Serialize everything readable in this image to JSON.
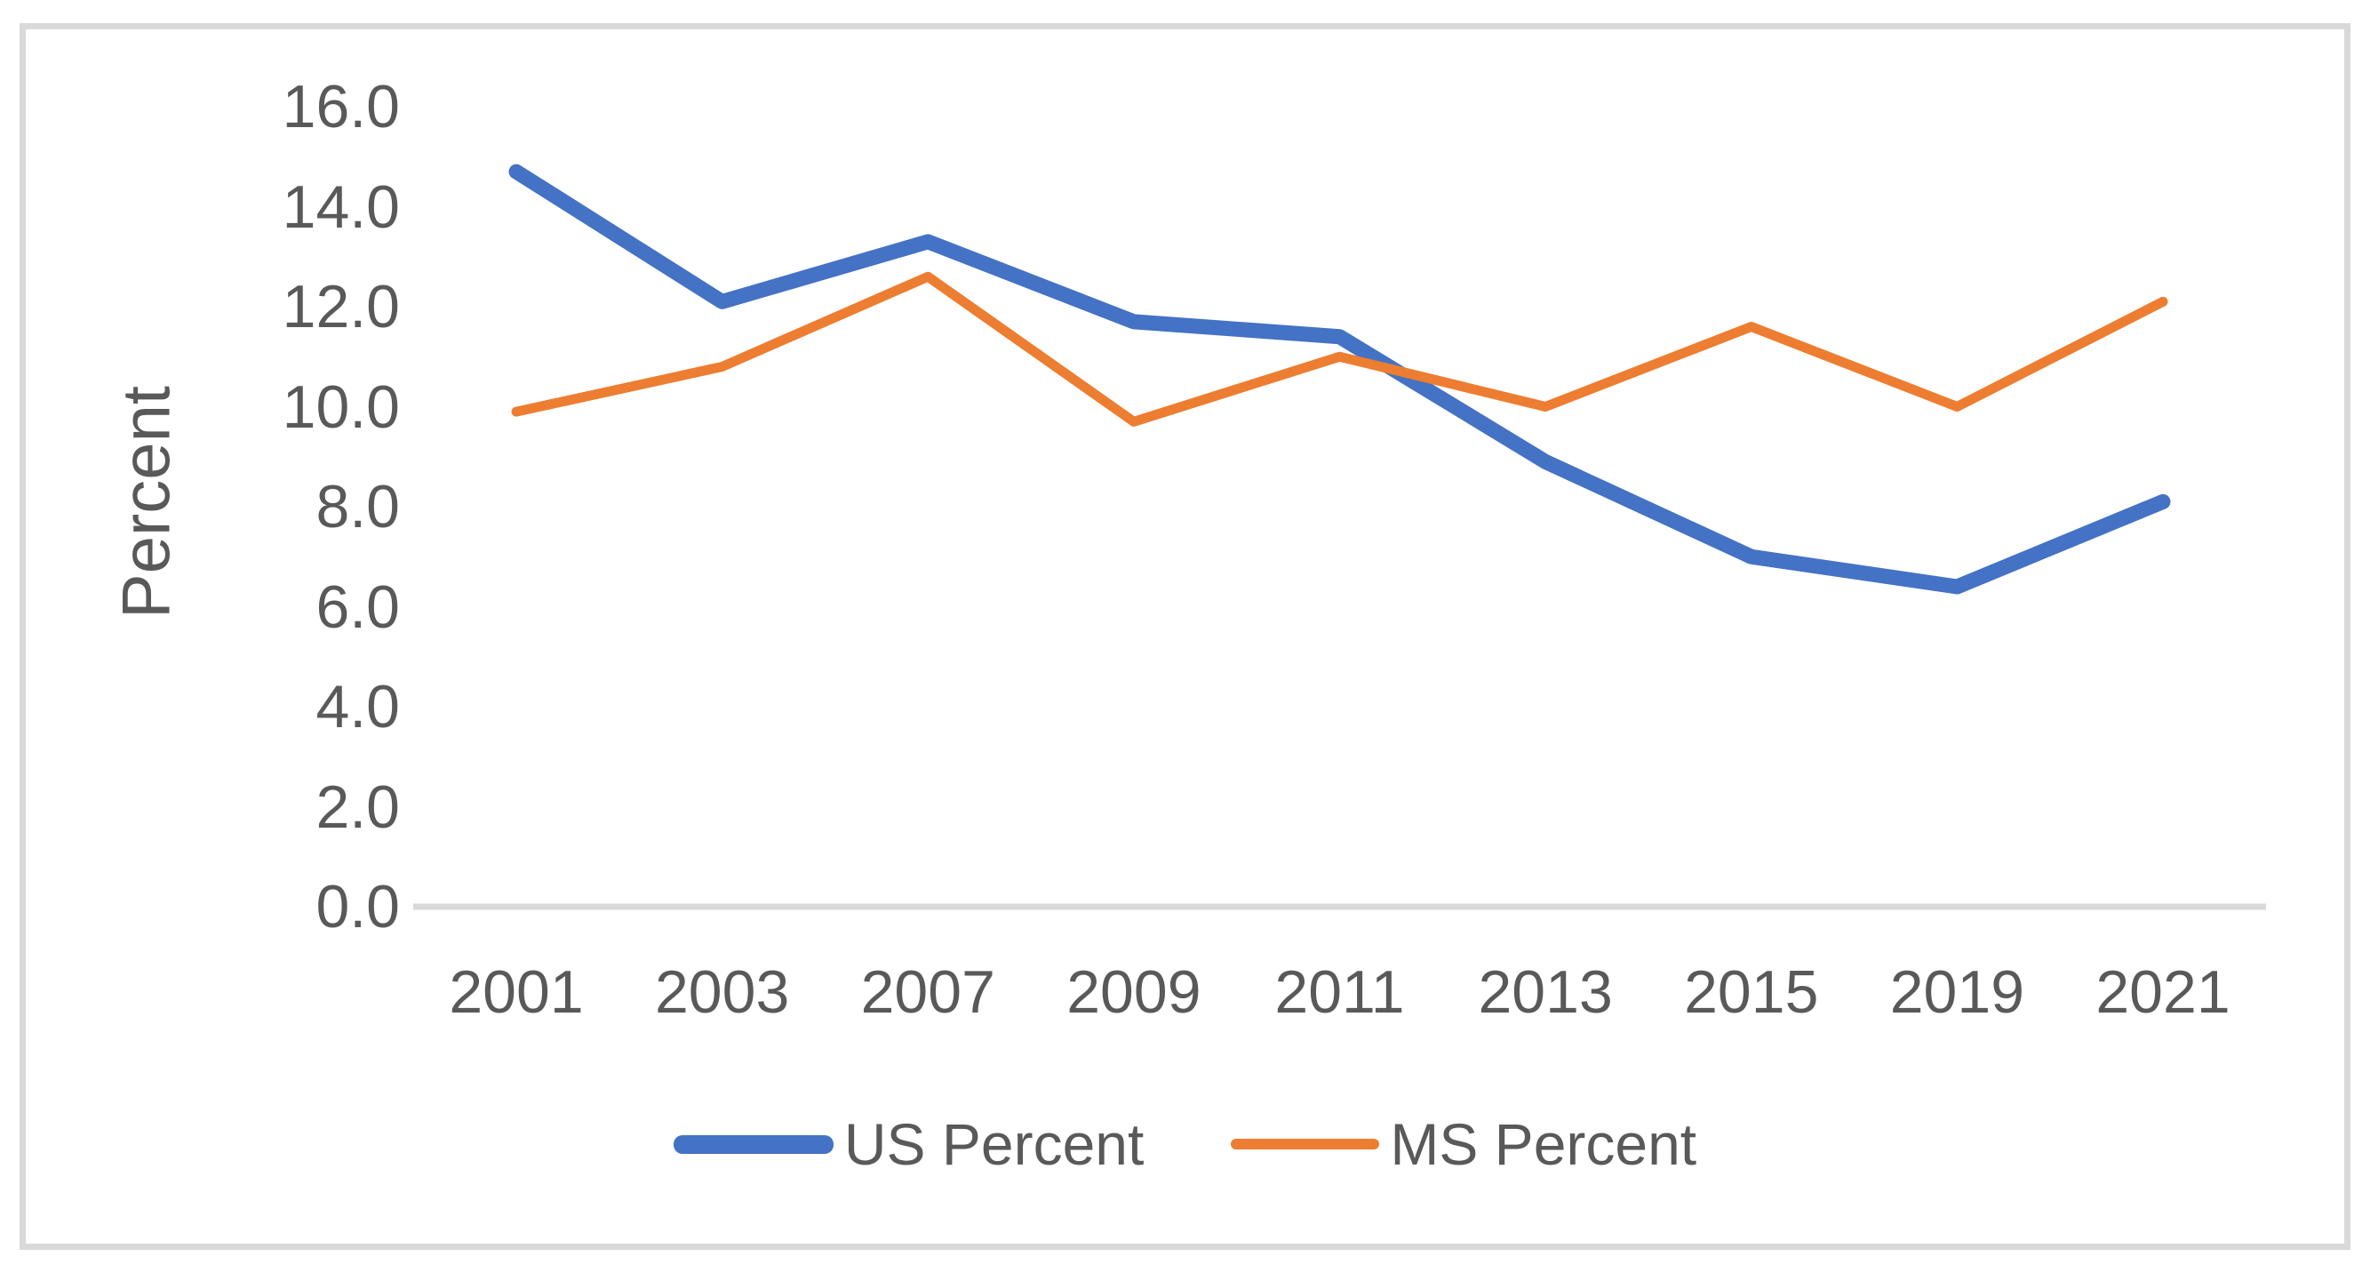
{
  "chart_data": {
    "type": "line",
    "categories": [
      "2001",
      "2003",
      "2007",
      "2009",
      "2011",
      "2013",
      "2015",
      "2019",
      "2021"
    ],
    "series": [
      {
        "name": "US Percent",
        "color": "#4472C4",
        "stroke_width": 17,
        "values": [
          14.7,
          12.1,
          13.3,
          11.7,
          11.4,
          8.9,
          7.0,
          6.4,
          8.1
        ]
      },
      {
        "name": "MS Percent",
        "color": "#ED7D31",
        "stroke_width": 11,
        "values": [
          9.9,
          10.8,
          12.6,
          9.7,
          11.0,
          10.0,
          11.6,
          10.0,
          12.1
        ]
      }
    ],
    "title": "",
    "xlabel": "",
    "ylabel": "Percent",
    "ylim": [
      0,
      16
    ],
    "ytick_step": 2,
    "y_tick_labels_top_to_bottom": [
      "16.0",
      "14.0",
      "12.0",
      "10.0",
      "8.0",
      "6.0",
      "4.0",
      "2.0",
      "0.0"
    ],
    "grid": false,
    "legend_position": "bottom"
  },
  "colors": {
    "series_us": "#4472C4",
    "series_ms": "#ED7D31",
    "axis_line": "#D9D9D9",
    "frame_border": "#D9D9D9",
    "text": "#595959",
    "background": "#FFFFFF"
  }
}
